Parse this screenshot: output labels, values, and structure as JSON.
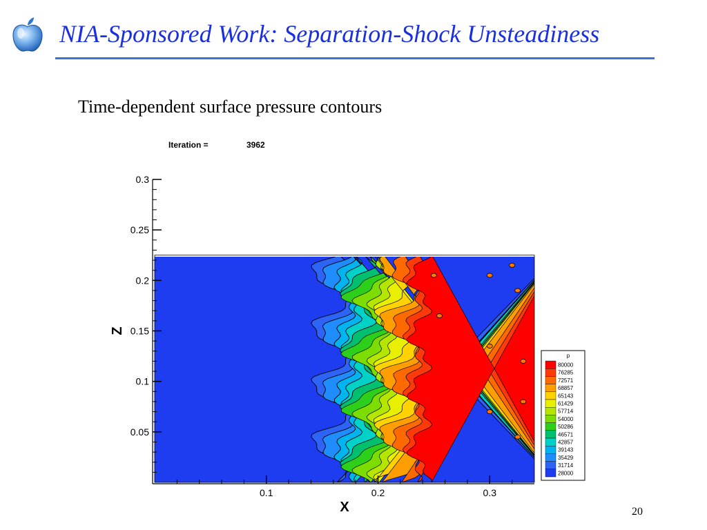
{
  "slide": {
    "title": "NIA-Sponsored Work: Separation-Shock Unsteadiness",
    "subtitle": "Time-dependent surface pressure contours",
    "page_number": "20",
    "logo": "apple-logo"
  },
  "plot_header": {
    "iteration_label": "Iteration =",
    "iteration_value": "3962"
  },
  "colors": {
    "title": "#1a2fe0",
    "rule": "#3a73d8"
  },
  "chart_data": {
    "type": "heatmap",
    "title": "",
    "xlabel": "X",
    "ylabel": "Z",
    "xlim": [
      0.0,
      0.34
    ],
    "ylim": [
      0.0,
      0.3
    ],
    "x_ticks": [
      "0.1",
      "0.2",
      "0.3"
    ],
    "y_ticks": [
      "0.05",
      "0.1",
      "0.15",
      "0.2",
      "0.25",
      "0.3"
    ],
    "domain": {
      "x": [
        0.0,
        0.34
      ],
      "z": [
        0.0,
        0.225
      ]
    },
    "legend": {
      "title": "p",
      "position": "right",
      "levels": [
        "80000",
        "76285",
        "72571",
        "68857",
        "65143",
        "61429",
        "57714",
        "54000",
        "50286",
        "46571",
        "42857",
        "39143",
        "35429",
        "31714",
        "28000"
      ],
      "colors": [
        "#ff0000",
        "#ff3a0a",
        "#ff6a00",
        "#ff9e00",
        "#ffd200",
        "#e8f000",
        "#b4e600",
        "#7ddc00",
        "#2ecf1a",
        "#00c070",
        "#00d2c8",
        "#00b4f0",
        "#1f8cff",
        "#2d64f5",
        "#1e3cf0"
      ]
    }
  }
}
